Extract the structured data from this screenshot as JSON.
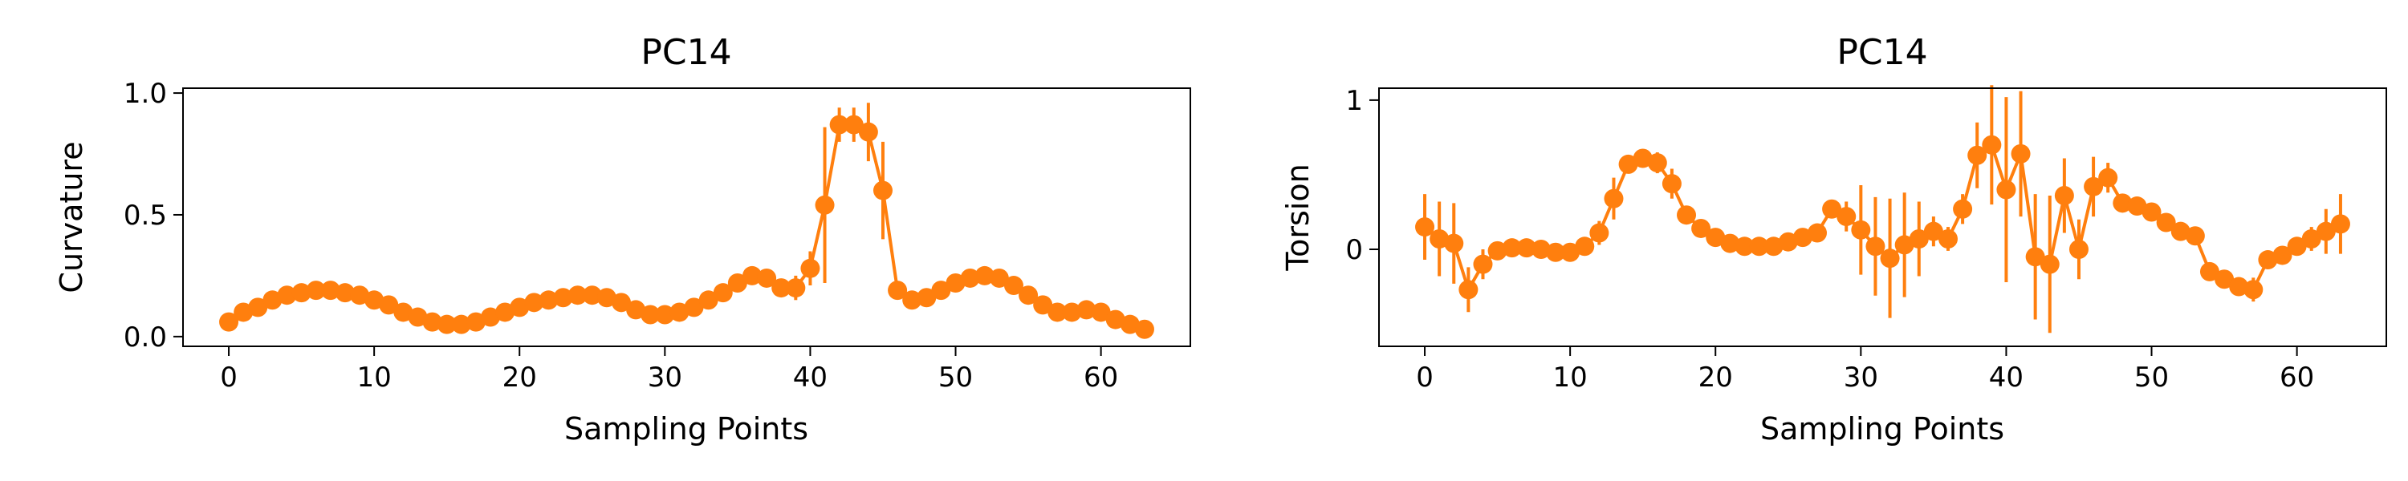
{
  "chart_data": [
    {
      "type": "line",
      "title": "PC14",
      "xlabel": "Sampling Points",
      "ylabel": "Curvature",
      "xlim": [
        -3.15,
        66.15
      ],
      "ylim": [
        -0.04,
        1.02
      ],
      "xticks": [
        0,
        10,
        20,
        30,
        40,
        50,
        60
      ],
      "xtick_labels": [
        "0",
        "10",
        "20",
        "30",
        "40",
        "50",
        "60"
      ],
      "yticks": [
        0.0,
        0.5,
        1.0
      ],
      "ytick_labels": [
        "0.0",
        "0.5",
        "1.0"
      ],
      "color": "#ff7f0e",
      "series": [
        {
          "x": [
            0,
            1,
            2,
            3,
            4,
            5,
            6,
            7,
            8,
            9,
            10,
            11,
            12,
            13,
            14,
            15,
            16,
            17,
            18,
            19,
            20,
            21,
            22,
            23,
            24,
            25,
            26,
            27,
            28,
            29,
            30,
            31,
            32,
            33,
            34,
            35,
            36,
            37,
            38,
            39,
            40,
            41,
            42,
            43,
            44,
            45,
            46,
            47,
            48,
            49,
            50,
            51,
            52,
            53,
            54,
            55,
            56,
            57,
            58,
            59,
            60,
            61,
            62,
            63
          ],
          "y": [
            0.06,
            0.1,
            0.12,
            0.15,
            0.17,
            0.18,
            0.19,
            0.19,
            0.18,
            0.17,
            0.15,
            0.13,
            0.1,
            0.08,
            0.06,
            0.05,
            0.05,
            0.06,
            0.08,
            0.1,
            0.12,
            0.14,
            0.15,
            0.16,
            0.17,
            0.17,
            0.16,
            0.14,
            0.11,
            0.09,
            0.09,
            0.1,
            0.12,
            0.15,
            0.18,
            0.22,
            0.25,
            0.24,
            0.2,
            0.2,
            0.28,
            0.54,
            0.87,
            0.87,
            0.84,
            0.6,
            0.19,
            0.15,
            0.16,
            0.19,
            0.22,
            0.24,
            0.25,
            0.24,
            0.21,
            0.17,
            0.13,
            0.1,
            0.1,
            0.11,
            0.1,
            0.07,
            0.05,
            0.03
          ],
          "err": [
            0.01,
            0.01,
            0.01,
            0.01,
            0.01,
            0.01,
            0.01,
            0.01,
            0.01,
            0.01,
            0.01,
            0.01,
            0.01,
            0.01,
            0.01,
            0.01,
            0.01,
            0.01,
            0.01,
            0.01,
            0.01,
            0.01,
            0.01,
            0.01,
            0.01,
            0.01,
            0.01,
            0.01,
            0.02,
            0.01,
            0.01,
            0.01,
            0.01,
            0.01,
            0.02,
            0.02,
            0.02,
            0.02,
            0.03,
            0.05,
            0.07,
            0.32,
            0.07,
            0.07,
            0.12,
            0.2,
            0.02,
            0.02,
            0.01,
            0.01,
            0.01,
            0.01,
            0.01,
            0.01,
            0.01,
            0.02,
            0.02,
            0.02,
            0.01,
            0.01,
            0.01,
            0.01,
            0.02,
            0.02
          ]
        }
      ]
    },
    {
      "type": "line",
      "title": "PC14",
      "xlabel": "Sampling Points",
      "ylabel": "Torsion",
      "xlim": [
        -3.15,
        66.15
      ],
      "ylim": [
        -0.65,
        1.08
      ],
      "xticks": [
        0,
        10,
        20,
        30,
        40,
        50,
        60
      ],
      "xtick_labels": [
        "0",
        "10",
        "20",
        "30",
        "40",
        "50",
        "60"
      ],
      "yticks": [
        0,
        1
      ],
      "ytick_labels": [
        "0",
        "1"
      ],
      "color": "#ff7f0e",
      "series": [
        {
          "x": [
            0,
            1,
            2,
            3,
            4,
            5,
            6,
            7,
            8,
            9,
            10,
            11,
            12,
            13,
            14,
            15,
            16,
            17,
            18,
            19,
            20,
            21,
            22,
            23,
            24,
            25,
            26,
            27,
            28,
            29,
            30,
            31,
            32,
            33,
            34,
            35,
            36,
            37,
            38,
            39,
            40,
            41,
            42,
            43,
            44,
            45,
            46,
            47,
            48,
            49,
            50,
            51,
            52,
            53,
            54,
            55,
            56,
            57,
            58,
            59,
            60,
            61,
            62,
            63
          ],
          "y": [
            0.15,
            0.07,
            0.04,
            -0.27,
            -0.1,
            -0.01,
            0.01,
            0.01,
            0.0,
            -0.02,
            -0.02,
            0.02,
            0.11,
            0.34,
            0.57,
            0.61,
            0.58,
            0.44,
            0.23,
            0.14,
            0.08,
            0.04,
            0.02,
            0.02,
            0.02,
            0.05,
            0.08,
            0.11,
            0.27,
            0.22,
            0.13,
            0.02,
            -0.06,
            0.03,
            0.07,
            0.12,
            0.07,
            0.27,
            0.63,
            0.7,
            0.4,
            0.64,
            -0.05,
            -0.1,
            0.36,
            0.0,
            0.42,
            0.48,
            0.31,
            0.29,
            0.25,
            0.18,
            0.12,
            0.09,
            -0.15,
            -0.2,
            -0.25,
            -0.27,
            -0.07,
            -0.04,
            0.02,
            0.07,
            0.12,
            0.17
          ],
          "err": [
            0.22,
            0.25,
            0.27,
            0.15,
            0.1,
            0.05,
            0.04,
            0.03,
            0.03,
            0.03,
            0.03,
            0.04,
            0.08,
            0.14,
            0.05,
            0.06,
            0.07,
            0.1,
            0.06,
            0.04,
            0.03,
            0.03,
            0.03,
            0.03,
            0.04,
            0.04,
            0.05,
            0.05,
            0.06,
            0.1,
            0.3,
            0.33,
            0.4,
            0.35,
            0.25,
            0.1,
            0.08,
            0.1,
            0.22,
            0.4,
            0.62,
            0.42,
            0.42,
            0.46,
            0.25,
            0.2,
            0.2,
            0.1,
            0.05,
            0.04,
            0.04,
            0.04,
            0.04,
            0.05,
            0.05,
            0.05,
            0.05,
            0.08,
            0.06,
            0.06,
            0.06,
            0.08,
            0.15,
            0.2
          ]
        }
      ]
    }
  ]
}
